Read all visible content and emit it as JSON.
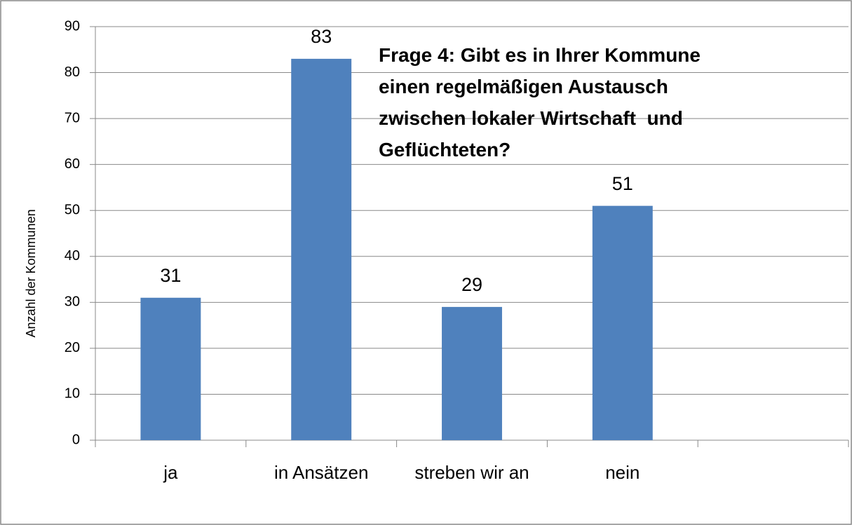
{
  "chart_data": {
    "type": "bar",
    "title": "Frage 4: Gibt es in Ihrer Kommune\neinen regelmäßigen Austausch\nzwischen lokaler Wirtschaft  und\nGeflüchteten?",
    "y_label": "Anzahl der Kommunen",
    "categories": [
      "ja",
      "in Ansätzen",
      "streben wir an",
      "nein",
      null
    ],
    "values": [
      31,
      83,
      29,
      51,
      null
    ],
    "color": "#4f81bd",
    "ylim": [
      0,
      90
    ],
    "yticks": [
      0,
      10,
      20,
      30,
      40,
      50,
      60,
      70,
      80,
      90
    ],
    "grid": true
  }
}
